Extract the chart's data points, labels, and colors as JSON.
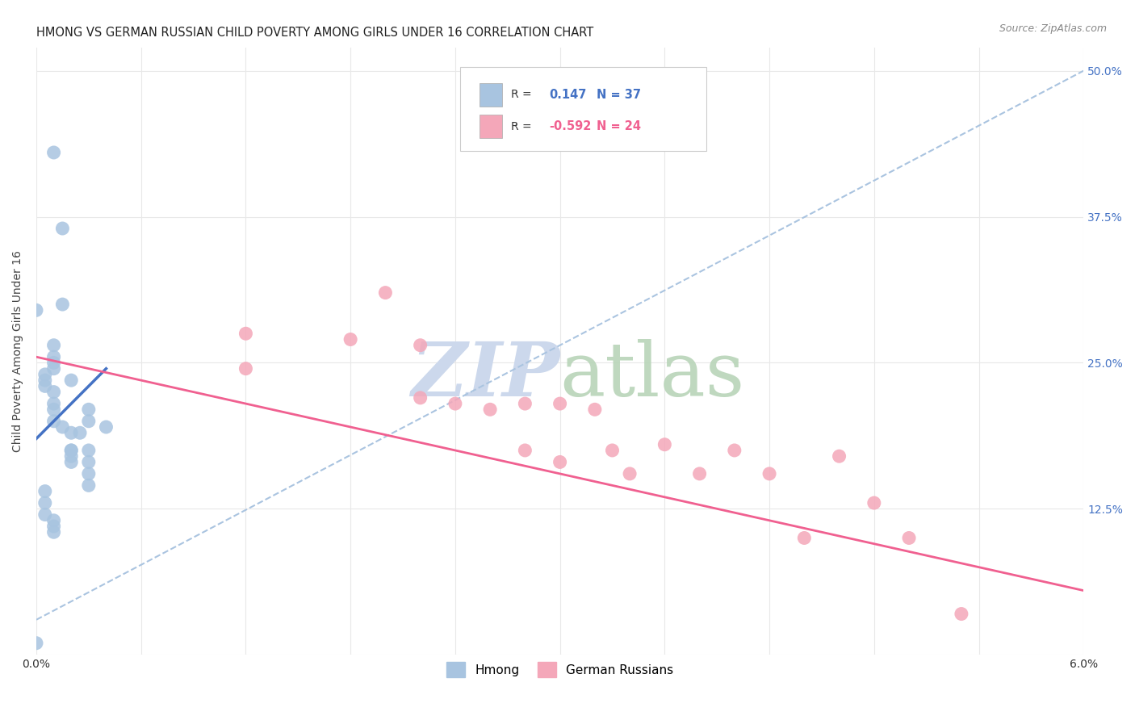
{
  "title": "HMONG VS GERMAN RUSSIAN CHILD POVERTY AMONG GIRLS UNDER 16 CORRELATION CHART",
  "source": "Source: ZipAtlas.com",
  "ylabel": "Child Poverty Among Girls Under 16",
  "xlim": [
    0.0,
    0.06
  ],
  "ylim": [
    0.0,
    0.52
  ],
  "xticks": [
    0.0,
    0.006,
    0.012,
    0.018,
    0.024,
    0.03,
    0.036,
    0.042,
    0.048,
    0.054,
    0.06
  ],
  "xticklabels": [
    "0.0%",
    "",
    "",
    "",
    "",
    "",
    "",
    "",
    "",
    "",
    "6.0%"
  ],
  "yticks": [
    0.0,
    0.125,
    0.25,
    0.375,
    0.5
  ],
  "yticklabels_right": [
    "",
    "12.5%",
    "25.0%",
    "37.5%",
    "50.0%"
  ],
  "hmong_R": 0.147,
  "hmong_N": 37,
  "german_R": -0.592,
  "german_N": 24,
  "hmong_color": "#a8c4e0",
  "german_color": "#f4a7b9",
  "hmong_line_color": "#4472c4",
  "german_line_color": "#f06090",
  "dashed_line_color": "#aac4e0",
  "watermark_zip_color": "#ccd8ec",
  "watermark_atlas_color": "#b8d4b8",
  "background_color": "#ffffff",
  "grid_color": "#e8e8e8",
  "tick_color": "#4472c4",
  "hmong_x": [
    0.001,
    0.0015,
    0.0,
    0.0,
    0.001,
    0.001,
    0.001,
    0.001,
    0.0005,
    0.0005,
    0.0005,
    0.001,
    0.001,
    0.001,
    0.001,
    0.0015,
    0.0015,
    0.002,
    0.002,
    0.002,
    0.002,
    0.0025,
    0.003,
    0.003,
    0.003,
    0.003,
    0.003,
    0.003,
    0.004,
    0.0005,
    0.0005,
    0.0005,
    0.001,
    0.001,
    0.001,
    0.002,
    0.002
  ],
  "hmong_y": [
    0.43,
    0.365,
    0.295,
    0.01,
    0.265,
    0.255,
    0.25,
    0.245,
    0.24,
    0.235,
    0.23,
    0.225,
    0.215,
    0.21,
    0.2,
    0.3,
    0.195,
    0.235,
    0.19,
    0.175,
    0.165,
    0.19,
    0.21,
    0.2,
    0.175,
    0.165,
    0.155,
    0.145,
    0.195,
    0.14,
    0.13,
    0.12,
    0.115,
    0.11,
    0.105,
    0.175,
    0.17
  ],
  "german_x": [
    0.012,
    0.012,
    0.018,
    0.02,
    0.022,
    0.022,
    0.024,
    0.026,
    0.028,
    0.028,
    0.03,
    0.03,
    0.032,
    0.033,
    0.034,
    0.036,
    0.038,
    0.04,
    0.042,
    0.044,
    0.046,
    0.048,
    0.05,
    0.053
  ],
  "german_y": [
    0.275,
    0.245,
    0.27,
    0.31,
    0.265,
    0.22,
    0.215,
    0.21,
    0.215,
    0.175,
    0.215,
    0.165,
    0.21,
    0.175,
    0.155,
    0.18,
    0.155,
    0.175,
    0.155,
    0.1,
    0.17,
    0.13,
    0.1,
    0.035
  ],
  "hmong_line_x": [
    0.0,
    0.004
  ],
  "hmong_line_y": [
    0.185,
    0.245
  ],
  "german_line_x": [
    0.0,
    0.06
  ],
  "german_line_y": [
    0.255,
    0.055
  ],
  "dashed_line_x": [
    0.0,
    0.06
  ],
  "dashed_line_y": [
    0.03,
    0.5
  ]
}
